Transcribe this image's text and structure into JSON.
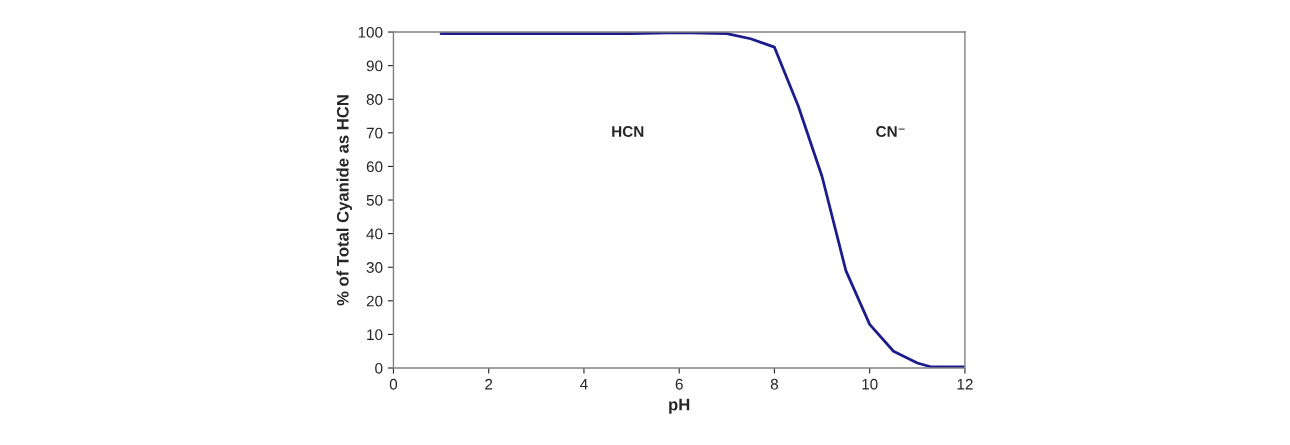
{
  "chart_data": {
    "type": "line",
    "xlabel": "pH",
    "ylabel": "% of Total Cyanide as HCN",
    "x": [
      1,
      5,
      6,
      7,
      7.5,
      8,
      8.5,
      9,
      9.5,
      10,
      10.5,
      11,
      11.3,
      12
    ],
    "series": [
      {
        "color": "#1c1c8c",
        "values": [
          99.5,
          99.5,
          99.8,
          99.5,
          98,
          95.5,
          78,
          57,
          29,
          13,
          5,
          1.5,
          0.3,
          0.3
        ]
      }
    ],
    "xlim": [
      0,
      12
    ],
    "xticks": [
      0,
      2,
      4,
      6,
      8,
      10,
      12
    ],
    "ylim": [
      0,
      100
    ],
    "yticks": [
      0,
      10,
      20,
      30,
      40,
      50,
      60,
      70,
      80,
      90,
      100
    ],
    "grid": false,
    "legend": false,
    "marker": "none",
    "line_style": "solid",
    "annotations": [
      "HCN",
      "CN⁻"
    ]
  }
}
